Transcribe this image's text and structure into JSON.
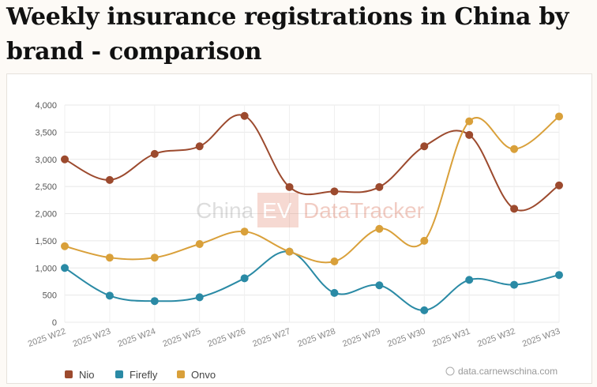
{
  "title": "Weekly insurance registrations in China by brand - comparison",
  "watermark": {
    "left": "China",
    "box": "EV",
    "right": "DataTracker"
  },
  "source": "data.carnewschina.com",
  "chart_data": {
    "type": "line",
    "title": "Weekly insurance registrations in China by brand - comparison",
    "xlabel": "",
    "ylabel": "",
    "categories": [
      "2025 W22",
      "2025 W23",
      "2025 W24",
      "2025 W25",
      "2025 W26",
      "2025 W27",
      "2025 W28",
      "2025 W29",
      "2025 W30",
      "2025 W31",
      "2025 W32",
      "2025 W33"
    ],
    "ylim": [
      0,
      4000
    ],
    "yticks": [
      0,
      500,
      1000,
      1500,
      2000,
      2500,
      3000,
      3500,
      4000
    ],
    "ytick_labels": [
      "0",
      "500",
      "1,000",
      "1,500",
      "2,000",
      "2,500",
      "3,000",
      "3,500",
      "4,000"
    ],
    "grid": true,
    "legend_position": "bottom-left",
    "series": [
      {
        "name": "Nio",
        "color": "#9c4a2e",
        "values": [
          3000,
          2620,
          3100,
          3240,
          3800,
          2490,
          2410,
          2490,
          3240,
          3450,
          2090,
          2520
        ]
      },
      {
        "name": "Firefly",
        "color": "#2a8aa5",
        "values": [
          1000,
          490,
          390,
          460,
          810,
          1300,
          540,
          680,
          220,
          780,
          690,
          870
        ]
      },
      {
        "name": "Onvo",
        "color": "#d9a03a",
        "values": [
          1400,
          1190,
          1190,
          1440,
          1670,
          1300,
          1120,
          1720,
          1500,
          3700,
          3190,
          3790
        ]
      }
    ]
  }
}
